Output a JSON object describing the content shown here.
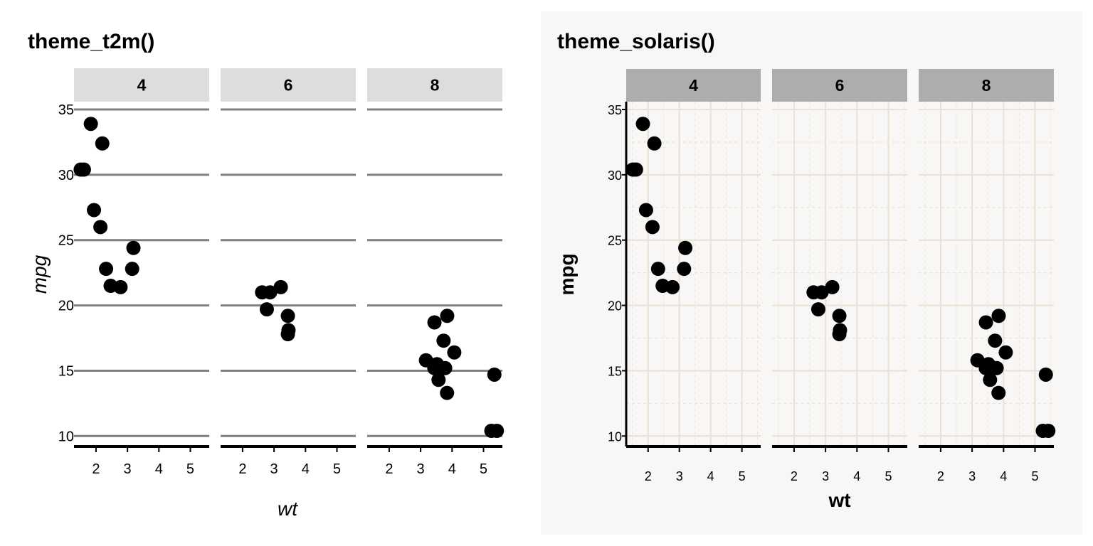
{
  "chart_data": [
    {
      "type": "scatter",
      "title": "theme_t2m()",
      "xlabel": "wt",
      "ylabel": "mpg",
      "facets": [
        "4",
        "6",
        "8"
      ],
      "xlim": [
        1.3,
        5.6
      ],
      "ylim": [
        9.2,
        35.6
      ],
      "x_ticks": [
        "2",
        "3",
        "4",
        "5"
      ],
      "y_ticks": [
        "10",
        "15",
        "20",
        "25",
        "30",
        "35"
      ],
      "grid": "major-y",
      "background": "#ffffff",
      "strip_color": "#dddddd",
      "point_color": "#000000",
      "series": [
        {
          "facet": "4",
          "points": [
            [
              2.32,
              22.8
            ],
            [
              3.19,
              24.4
            ],
            [
              3.15,
              22.8
            ],
            [
              2.2,
              32.4
            ],
            [
              1.615,
              30.4
            ],
            [
              1.835,
              33.9
            ],
            [
              2.465,
              21.5
            ],
            [
              1.935,
              27.3
            ],
            [
              2.14,
              26.0
            ],
            [
              1.513,
              30.4
            ],
            [
              2.78,
              21.4
            ]
          ]
        },
        {
          "facet": "6",
          "points": [
            [
              2.62,
              21.0
            ],
            [
              2.875,
              21.0
            ],
            [
              3.215,
              21.4
            ],
            [
              3.46,
              18.1
            ],
            [
              3.44,
              19.2
            ],
            [
              3.44,
              17.8
            ],
            [
              2.77,
              19.7
            ]
          ]
        },
        {
          "facet": "8",
          "points": [
            [
              3.44,
              18.7
            ],
            [
              3.57,
              14.3
            ],
            [
              4.07,
              16.4
            ],
            [
              3.73,
              17.3
            ],
            [
              3.78,
              15.2
            ],
            [
              5.25,
              10.4
            ],
            [
              5.424,
              10.4
            ],
            [
              5.345,
              14.7
            ],
            [
              3.52,
              15.5
            ],
            [
              3.435,
              15.2
            ],
            [
              3.84,
              13.3
            ],
            [
              3.845,
              19.2
            ],
            [
              3.17,
              15.8
            ],
            [
              3.57,
              15.0
            ]
          ]
        }
      ]
    },
    {
      "type": "scatter",
      "title": "theme_solaris()",
      "xlabel": "wt",
      "ylabel": "mpg",
      "facets": [
        "4",
        "6",
        "8"
      ],
      "xlim": [
        1.3,
        5.6
      ],
      "ylim": [
        9.2,
        35.6
      ],
      "x_ticks": [
        "2",
        "3",
        "4",
        "5"
      ],
      "y_ticks": [
        "10",
        "15",
        "20",
        "25",
        "30",
        "35"
      ],
      "grid": "major-and-minor",
      "background": "#f8f7f5",
      "strip_color": "#adadad",
      "point_color": "#000000",
      "series": [
        {
          "facet": "4",
          "points": [
            [
              2.32,
              22.8
            ],
            [
              3.19,
              24.4
            ],
            [
              3.15,
              22.8
            ],
            [
              2.2,
              32.4
            ],
            [
              1.615,
              30.4
            ],
            [
              1.835,
              33.9
            ],
            [
              2.465,
              21.5
            ],
            [
              1.935,
              27.3
            ],
            [
              2.14,
              26.0
            ],
            [
              1.513,
              30.4
            ],
            [
              2.78,
              21.4
            ]
          ]
        },
        {
          "facet": "6",
          "points": [
            [
              2.62,
              21.0
            ],
            [
              2.875,
              21.0
            ],
            [
              3.215,
              21.4
            ],
            [
              3.46,
              18.1
            ],
            [
              3.44,
              19.2
            ],
            [
              3.44,
              17.8
            ],
            [
              2.77,
              19.7
            ]
          ]
        },
        {
          "facet": "8",
          "points": [
            [
              3.44,
              18.7
            ],
            [
              3.57,
              14.3
            ],
            [
              4.07,
              16.4
            ],
            [
              3.73,
              17.3
            ],
            [
              3.78,
              15.2
            ],
            [
              5.25,
              10.4
            ],
            [
              5.424,
              10.4
            ],
            [
              5.345,
              14.7
            ],
            [
              3.52,
              15.5
            ],
            [
              3.435,
              15.2
            ],
            [
              3.84,
              13.3
            ],
            [
              3.845,
              19.2
            ],
            [
              3.17,
              15.8
            ],
            [
              3.57,
              15.0
            ]
          ]
        }
      ]
    }
  ]
}
